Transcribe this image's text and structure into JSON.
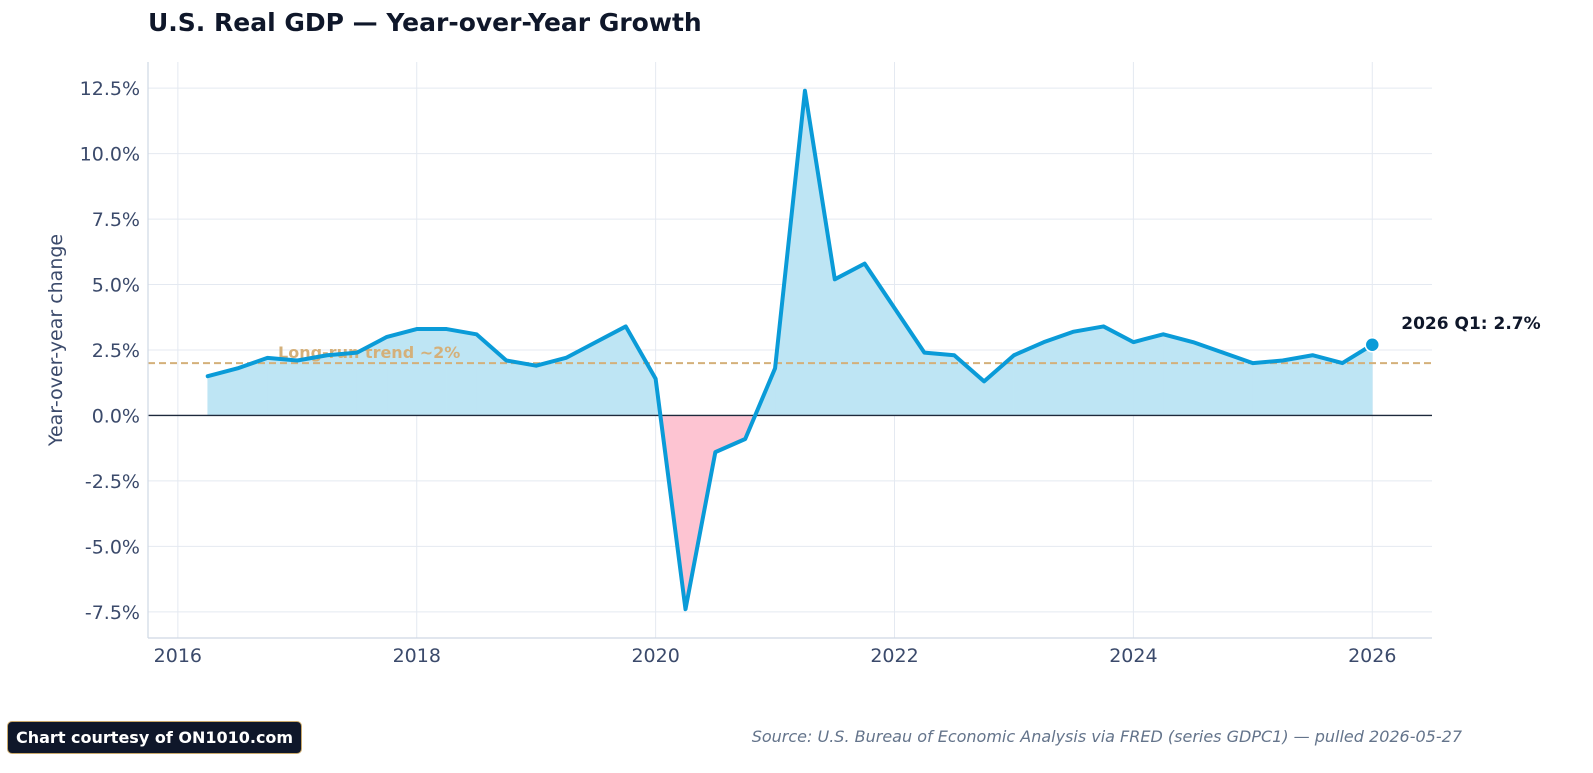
{
  "title": "U.S. Real GDP — Year-over-Year Growth",
  "credit": "Chart courtesy of ON1010.com",
  "source": "Source: U.S. Bureau of Economic Analysis via FRED (series GDPC1) — pulled 2026-05-27",
  "colors": {
    "line": "#0a9bd8",
    "positive_fill": "#bee5f4",
    "negative_fill": "#fdc4d2",
    "trend": "#d4b07a",
    "zero_line": "#1e293b",
    "grid": "#e4e9f1",
    "axis_text": "#3b4a6b"
  },
  "chart_data": {
    "type": "area",
    "xlabel": "",
    "ylabel": "Year-over-year change",
    "x_ticks": [
      2016,
      2018,
      2020,
      2022,
      2024,
      2026
    ],
    "y_ticks": [
      -7.5,
      -5.0,
      -2.5,
      0.0,
      2.5,
      5.0,
      7.5,
      10.0,
      12.5
    ],
    "y_tick_labels": [
      "-7.5%",
      "-5.0%",
      "-2.5%",
      "0.0%",
      "2.5%",
      "5.0%",
      "7.5%",
      "10.0%",
      "12.5%"
    ],
    "xlim": [
      2015.75,
      2026.5
    ],
    "ylim": [
      -8.5,
      13.5
    ],
    "grid": true,
    "reference_line": {
      "value": 2.0,
      "label": "Long-run trend ~2%"
    },
    "last_point_label": "2026 Q1: 2.7%",
    "series": [
      {
        "x": [
          2016.25,
          2016.5,
          2016.75,
          2017.0,
          2017.25,
          2017.5,
          2017.75,
          2018.0,
          2018.25,
          2018.5,
          2018.75,
          2019.0,
          2019.25,
          2019.5,
          2019.75,
          2020.0,
          2020.25,
          2020.5,
          2020.75,
          2021.0,
          2021.25,
          2021.5,
          2021.75,
          2022.0,
          2022.25,
          2022.5,
          2022.75,
          2023.0,
          2023.25,
          2023.5,
          2023.75,
          2024.0,
          2024.25,
          2024.5,
          2024.75,
          2025.0,
          2025.25,
          2025.5,
          2025.75,
          2026.0
        ],
        "values": [
          1.5,
          1.8,
          2.2,
          2.1,
          2.3,
          2.4,
          3.0,
          3.3,
          3.3,
          3.1,
          2.1,
          1.9,
          2.2,
          2.8,
          3.4,
          1.4,
          -7.4,
          -1.4,
          -0.9,
          1.8,
          12.4,
          5.2,
          5.8,
          4.1,
          2.4,
          2.3,
          1.3,
          2.3,
          2.8,
          3.2,
          3.4,
          2.8,
          3.1,
          2.8,
          2.4,
          2.0,
          2.1,
          2.3,
          2.0,
          2.7
        ]
      }
    ]
  }
}
